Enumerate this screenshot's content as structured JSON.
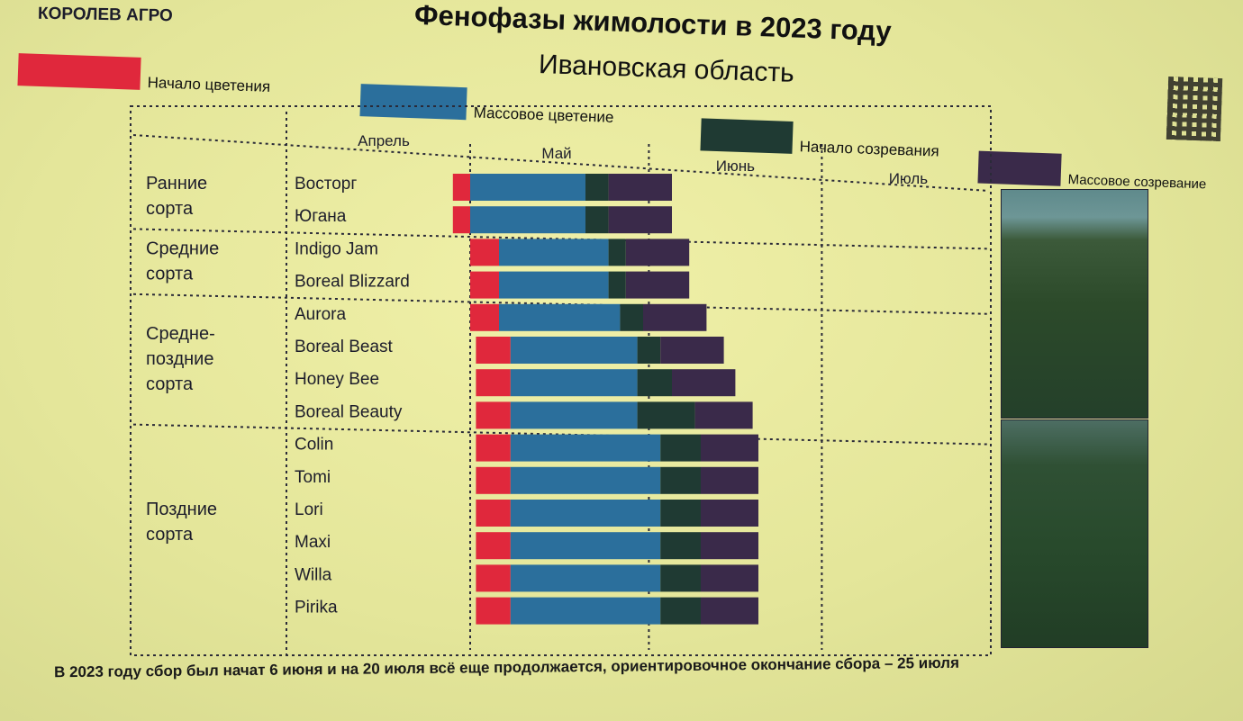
{
  "header": {
    "brand": "КОРОЛЕВ АГРО",
    "title": "Фенофазы жимолости в 2023 году",
    "subtitle": "Ивановская область"
  },
  "footer": {
    "note": "В 2023 году сбор был начат 6 июня и на 20 июля всё еще продолжается, ориентировочное окончание сбора – 25 июля"
  },
  "colors": {
    "bloom_start": "#e0283c",
    "bloom_mass": "#2b6f9c",
    "ripen_start": "#1f3a33",
    "ripen_mass": "#3a2a4a",
    "background": "#e9eb9f"
  },
  "images": [
    "honeysuckle-field-photo",
    "honeysuckle-bushes-photo"
  ],
  "chart_data": {
    "type": "gantt",
    "title": "Фенофазы жимолости в 2023 году",
    "subtitle": "Ивановская область",
    "months": [
      "Апрель",
      "Май",
      "Июнь",
      "Июль"
    ],
    "phases": [
      "Начало цветения",
      "Массовое цветение",
      "Начало созревания",
      "Массовое созревание"
    ],
    "groups": [
      {
        "name": "Ранние\nсорта",
        "rows": [
          0,
          1
        ]
      },
      {
        "name": "Средние\nсорта",
        "rows": [
          2,
          3
        ]
      },
      {
        "name": "Средне-\nпоздние\nсорта",
        "rows": [
          4,
          5,
          6,
          7
        ]
      },
      {
        "name": "Поздние\nсорта",
        "rows": [
          8,
          9,
          10,
          11,
          12,
          13
        ]
      }
    ],
    "varieties": [
      {
        "name": "Восторг",
        "phases": [
          "04-28",
          "05-01",
          "05-21",
          "05-25",
          "06-05"
        ]
      },
      {
        "name": "Югана",
        "phases": [
          "04-28",
          "05-01",
          "05-21",
          "05-25",
          "06-05"
        ]
      },
      {
        "name": "Indigo Jam",
        "phases": [
          "05-01",
          "05-06",
          "05-25",
          "05-28",
          "06-08"
        ]
      },
      {
        "name": "Boreal Blizzard",
        "phases": [
          "05-01",
          "05-06",
          "05-25",
          "05-28",
          "06-08"
        ]
      },
      {
        "name": "Aurora",
        "phases": [
          "05-01",
          "05-06",
          "05-27",
          "05-31",
          "06-11"
        ]
      },
      {
        "name": "Boreal Beast",
        "phases": [
          "05-02",
          "05-08",
          "05-30",
          "06-03",
          "06-14"
        ]
      },
      {
        "name": "Honey Bee",
        "phases": [
          "05-02",
          "05-08",
          "05-30",
          "06-05",
          "06-16"
        ]
      },
      {
        "name": "Boreal Beauty",
        "phases": [
          "05-02",
          "05-08",
          "05-30",
          "06-09",
          "06-19"
        ]
      },
      {
        "name": "Colin",
        "phases": [
          "05-02",
          "05-08",
          "06-03",
          "06-10",
          "06-20"
        ]
      },
      {
        "name": "Tomi",
        "phases": [
          "05-02",
          "05-08",
          "06-03",
          "06-10",
          "06-20"
        ]
      },
      {
        "name": "Lori",
        "phases": [
          "05-02",
          "05-08",
          "06-03",
          "06-10",
          "06-20"
        ]
      },
      {
        "name": "Maxi",
        "phases": [
          "05-02",
          "05-08",
          "06-03",
          "06-10",
          "06-20"
        ]
      },
      {
        "name": "Willa",
        "phases": [
          "05-02",
          "05-08",
          "06-03",
          "06-10",
          "06-20"
        ]
      },
      {
        "name": "Pirika",
        "phases": [
          "05-02",
          "05-08",
          "06-03",
          "06-10",
          "06-20"
        ]
      }
    ],
    "xlim": [
      "04-01",
      "07-31"
    ],
    "legend_position": "top"
  }
}
